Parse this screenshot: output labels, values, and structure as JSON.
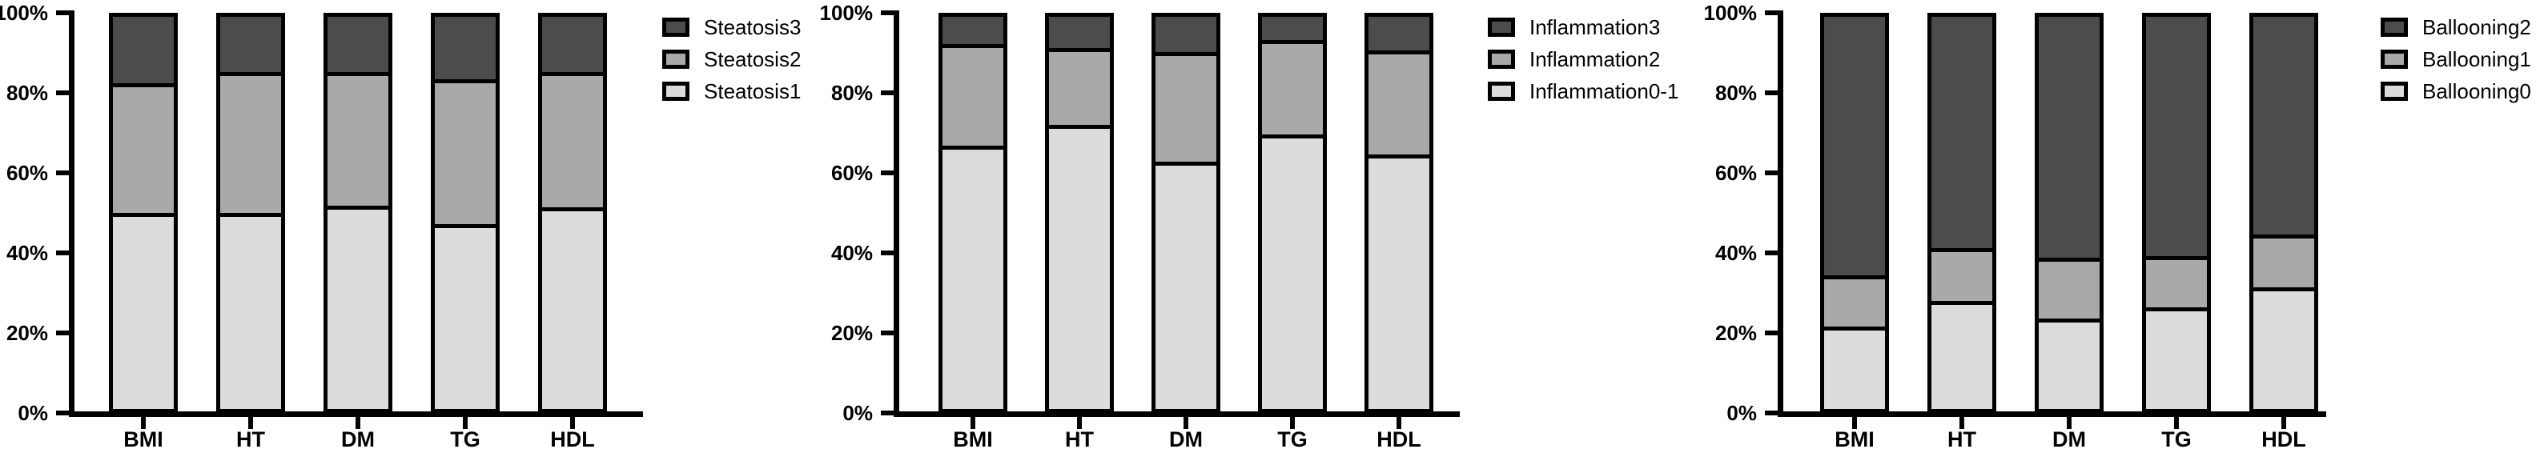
{
  "figure": {
    "background": "#ffffff",
    "axis_color": "#000000",
    "border_color": "#000000"
  },
  "chart_data": [
    {
      "type": "bar",
      "subtype": "stacked_percent",
      "title": "",
      "xlabel": "",
      "ylabel": "",
      "categories": [
        "BMI",
        "HT",
        "DM",
        "TG",
        "HDL"
      ],
      "series": [
        {
          "name": "Steatosis1",
          "color": "#dcdcdc",
          "values": [
            50,
            50,
            52,
            47,
            51.5
          ]
        },
        {
          "name": "Steatosis2",
          "color": "#a9a9a9",
          "values": [
            33,
            36,
            34,
            37,
            34.5
          ]
        },
        {
          "name": "Steatosis3",
          "color": "#4c4c4c",
          "values": [
            17,
            14,
            14,
            16,
            14
          ]
        }
      ],
      "stack_order": "bottom_to_top",
      "legend": [
        "Steatosis3",
        "Steatosis2",
        "Steatosis1"
      ],
      "legend_position": "right",
      "y_ticks": [
        "0%",
        "20%",
        "40%",
        "60%",
        "80%",
        "100%"
      ],
      "ylim": [
        0,
        100
      ],
      "grid": false
    },
    {
      "type": "bar",
      "subtype": "stacked_percent",
      "title": "",
      "xlabel": "",
      "ylabel": "",
      "categories": [
        "BMI",
        "HT",
        "DM",
        "TG",
        "HDL"
      ],
      "series": [
        {
          "name": "Inflammation0-1",
          "color": "#dcdcdc",
          "values": [
            67,
            72.5,
            63,
            70,
            65
          ]
        },
        {
          "name": "Inflammation2",
          "color": "#a9a9a9",
          "values": [
            26,
            19.5,
            28,
            24,
            26.5
          ]
        },
        {
          "name": "Inflammation3",
          "color": "#4c4c4c",
          "values": [
            7,
            8,
            9,
            6,
            8.5
          ]
        }
      ],
      "stack_order": "bottom_to_top",
      "legend": [
        "Inflammation3",
        "Inflammation2",
        "Inflammation0-1"
      ],
      "legend_position": "right",
      "y_ticks": [
        "0%",
        "20%",
        "40%",
        "60%",
        "80%",
        "100%"
      ],
      "ylim": [
        0,
        100
      ],
      "grid": false
    },
    {
      "type": "bar",
      "subtype": "stacked_percent",
      "title": "",
      "xlabel": "",
      "ylabel": "",
      "categories": [
        "BMI",
        "HT",
        "DM",
        "TG",
        "HDL"
      ],
      "series": [
        {
          "name": "Ballooning0",
          "color": "#dcdcdc",
          "values": [
            21,
            27.5,
            23,
            26,
            31
          ]
        },
        {
          "name": "Ballooning1",
          "color": "#a9a9a9",
          "values": [
            13,
            13.5,
            15.5,
            13,
            13.5
          ]
        },
        {
          "name": "Ballooning2",
          "color": "#4c4c4c",
          "values": [
            66,
            59,
            61.5,
            61,
            55.5
          ]
        }
      ],
      "stack_order": "bottom_to_top",
      "legend": [
        "Ballooning2",
        "Ballooning1",
        "Ballooning0"
      ],
      "legend_position": "right",
      "y_ticks": [
        "0%",
        "20%",
        "40%",
        "60%",
        "80%",
        "100%"
      ],
      "ylim": [
        0,
        100
      ],
      "grid": false
    }
  ]
}
